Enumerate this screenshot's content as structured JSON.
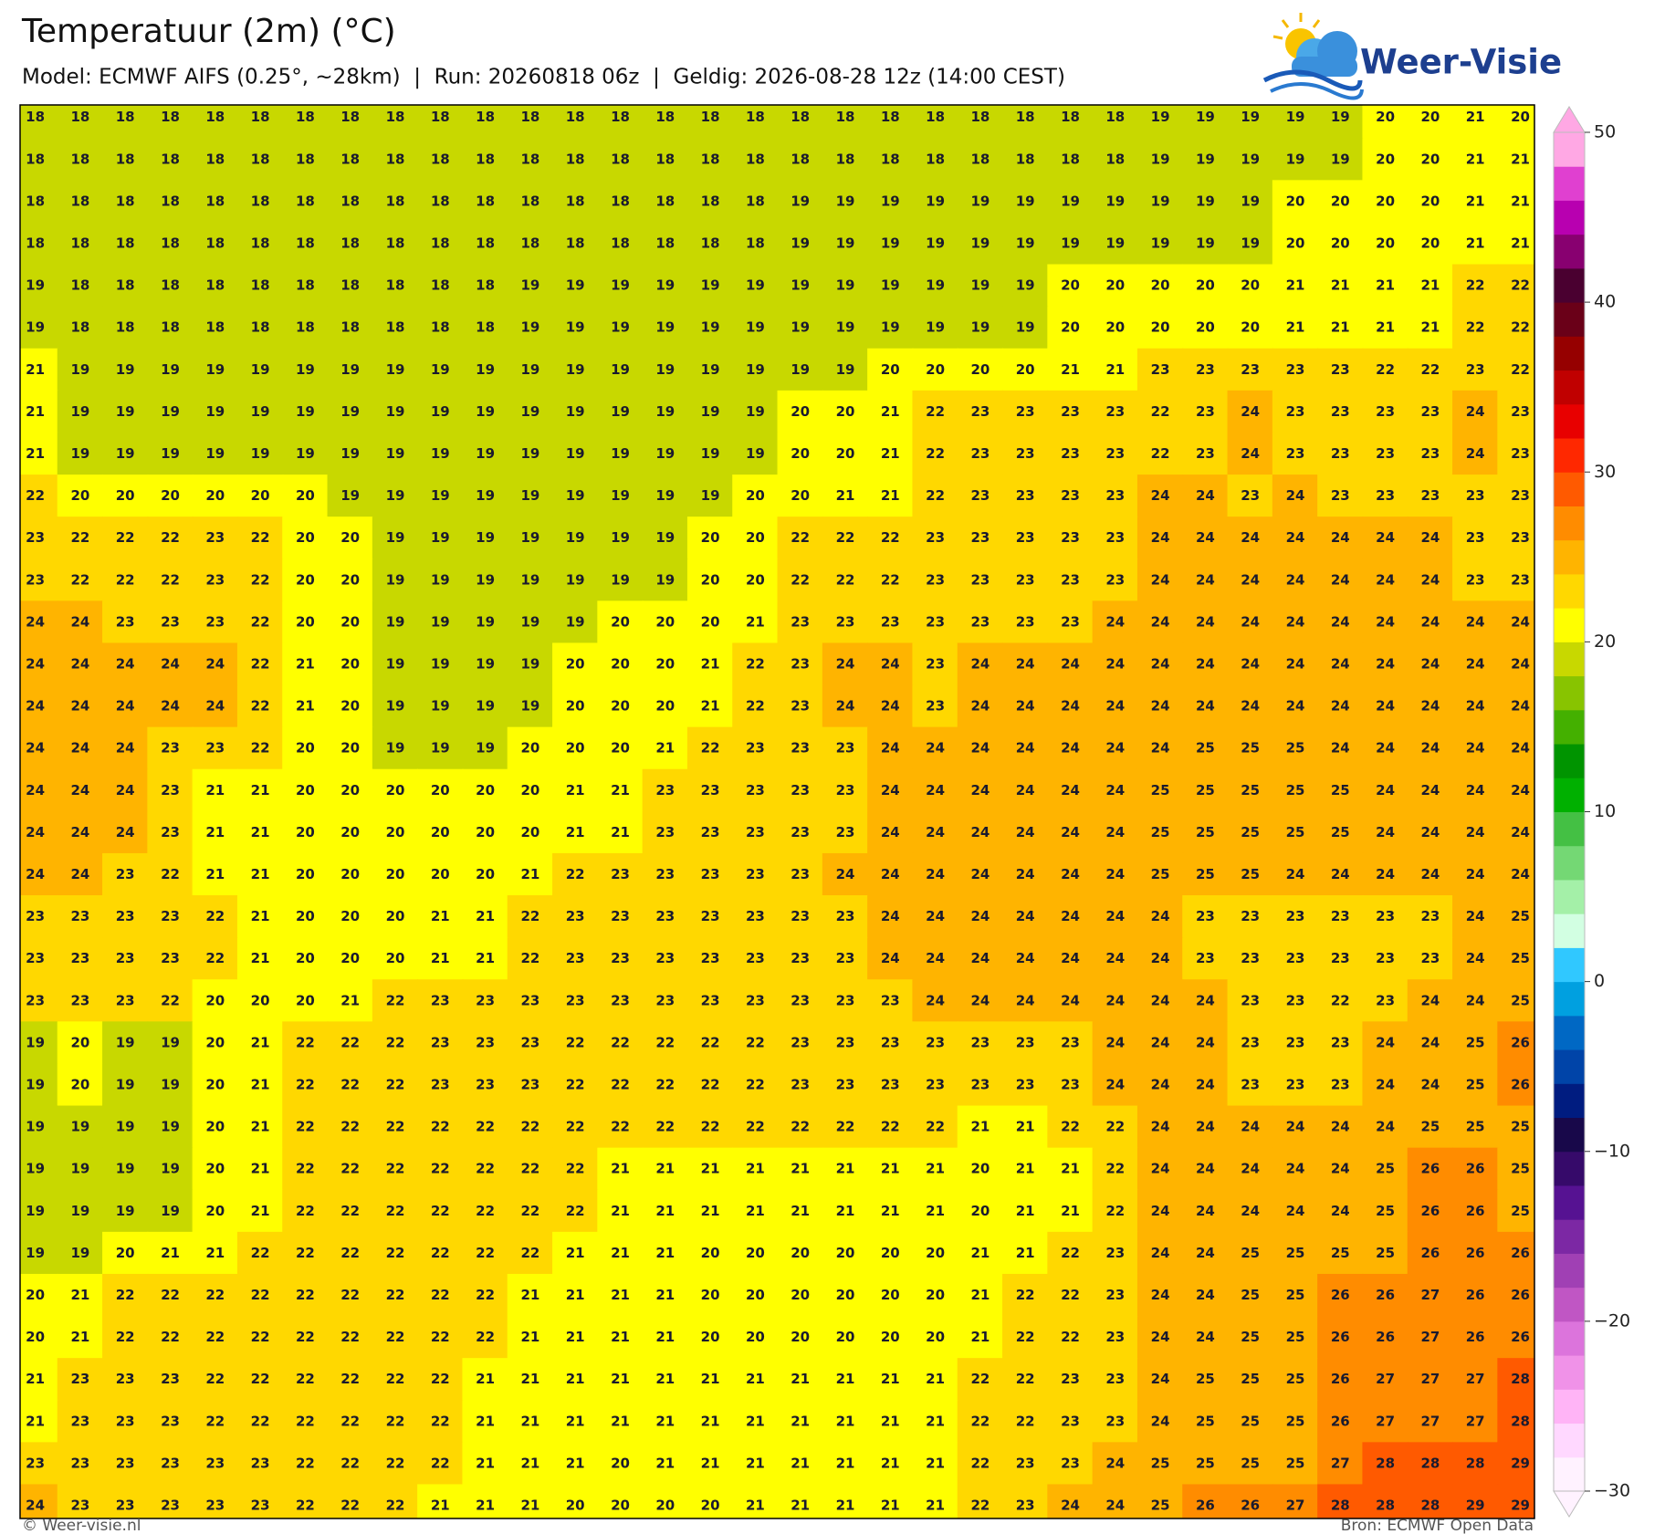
{
  "header": {
    "title": "Temperatuur (2m) (°C)",
    "subtitle": "Model: ECMWF AIFS (0.25°, ~28km)  |  Run: 20260818 06z  |  Geldig: 2026-08-28 12z (14:00 CEST)"
  },
  "logo": "Weer-Visie",
  "grid": [
    [
      18,
      18,
      18,
      18,
      18,
      18,
      18,
      18,
      18,
      18,
      18,
      18,
      18,
      18,
      18,
      18,
      18,
      18,
      18,
      18,
      18,
      18,
      18,
      18,
      18,
      19,
      19,
      19,
      19,
      19,
      20,
      20,
      21,
      20
    ],
    [
      18,
      18,
      18,
      18,
      18,
      18,
      18,
      18,
      18,
      18,
      18,
      18,
      18,
      18,
      18,
      18,
      18,
      18,
      18,
      18,
      18,
      18,
      18,
      18,
      18,
      19,
      19,
      19,
      19,
      19,
      20,
      20,
      21,
      21
    ],
    [
      18,
      18,
      18,
      18,
      18,
      18,
      18,
      18,
      18,
      18,
      18,
      18,
      18,
      18,
      18,
      18,
      18,
      19,
      19,
      19,
      19,
      19,
      19,
      19,
      19,
      19,
      19,
      19,
      20,
      20,
      20,
      20,
      21,
      21
    ],
    [
      18,
      18,
      18,
      18,
      18,
      18,
      18,
      18,
      18,
      18,
      18,
      18,
      18,
      18,
      18,
      18,
      18,
      19,
      19,
      19,
      19,
      19,
      19,
      19,
      19,
      19,
      19,
      19,
      20,
      20,
      20,
      20,
      21,
      21
    ],
    [
      19,
      18,
      18,
      18,
      18,
      18,
      18,
      18,
      18,
      18,
      18,
      19,
      19,
      19,
      19,
      19,
      19,
      19,
      19,
      19,
      19,
      19,
      19,
      20,
      20,
      20,
      20,
      20,
      21,
      21,
      21,
      21,
      22,
      22
    ],
    [
      19,
      18,
      18,
      18,
      18,
      18,
      18,
      18,
      18,
      18,
      18,
      19,
      19,
      19,
      19,
      19,
      19,
      19,
      19,
      19,
      19,
      19,
      19,
      20,
      20,
      20,
      20,
      20,
      21,
      21,
      21,
      21,
      22,
      22
    ],
    [
      21,
      19,
      19,
      19,
      19,
      19,
      19,
      19,
      19,
      19,
      19,
      19,
      19,
      19,
      19,
      19,
      19,
      19,
      19,
      20,
      20,
      20,
      20,
      21,
      21,
      23,
      23,
      23,
      23,
      23,
      22,
      22,
      23,
      22
    ],
    [
      21,
      19,
      19,
      19,
      19,
      19,
      19,
      19,
      19,
      19,
      19,
      19,
      19,
      19,
      19,
      19,
      19,
      20,
      20,
      21,
      22,
      23,
      23,
      23,
      23,
      22,
      23,
      24,
      23,
      23,
      23,
      23,
      24,
      23
    ],
    [
      21,
      19,
      19,
      19,
      19,
      19,
      19,
      19,
      19,
      19,
      19,
      19,
      19,
      19,
      19,
      19,
      19,
      20,
      20,
      21,
      22,
      23,
      23,
      23,
      23,
      22,
      23,
      24,
      23,
      23,
      23,
      23,
      24,
      23
    ],
    [
      22,
      20,
      20,
      20,
      20,
      20,
      20,
      19,
      19,
      19,
      19,
      19,
      19,
      19,
      19,
      19,
      20,
      20,
      21,
      21,
      22,
      23,
      23,
      23,
      23,
      24,
      24,
      23,
      24,
      23,
      23,
      23,
      23,
      23
    ],
    [
      23,
      22,
      22,
      22,
      23,
      22,
      20,
      20,
      19,
      19,
      19,
      19,
      19,
      19,
      19,
      20,
      20,
      22,
      22,
      22,
      23,
      23,
      23,
      23,
      23,
      24,
      24,
      24,
      24,
      24,
      24,
      24,
      23,
      23
    ],
    [
      23,
      22,
      22,
      22,
      23,
      22,
      20,
      20,
      19,
      19,
      19,
      19,
      19,
      19,
      19,
      20,
      20,
      22,
      22,
      22,
      23,
      23,
      23,
      23,
      23,
      24,
      24,
      24,
      24,
      24,
      24,
      24,
      23,
      23
    ],
    [
      24,
      24,
      23,
      23,
      23,
      22,
      20,
      20,
      19,
      19,
      19,
      19,
      19,
      20,
      20,
      20,
      21,
      23,
      23,
      23,
      23,
      23,
      23,
      23,
      24,
      24,
      24,
      24,
      24,
      24,
      24,
      24,
      24,
      24
    ],
    [
      24,
      24,
      24,
      24,
      24,
      22,
      21,
      20,
      19,
      19,
      19,
      19,
      20,
      20,
      20,
      21,
      22,
      23,
      24,
      24,
      23,
      24,
      24,
      24,
      24,
      24,
      24,
      24,
      24,
      24,
      24,
      24,
      24,
      24
    ],
    [
      24,
      24,
      24,
      24,
      24,
      22,
      21,
      20,
      19,
      19,
      19,
      19,
      20,
      20,
      20,
      21,
      22,
      23,
      24,
      24,
      23,
      24,
      24,
      24,
      24,
      24,
      24,
      24,
      24,
      24,
      24,
      24,
      24,
      24
    ],
    [
      24,
      24,
      24,
      23,
      23,
      22,
      20,
      20,
      19,
      19,
      19,
      20,
      20,
      20,
      21,
      22,
      23,
      23,
      23,
      24,
      24,
      24,
      24,
      24,
      24,
      24,
      25,
      25,
      25,
      24,
      24,
      24,
      24,
      24
    ],
    [
      24,
      24,
      24,
      23,
      21,
      21,
      20,
      20,
      20,
      20,
      20,
      20,
      21,
      21,
      23,
      23,
      23,
      23,
      23,
      24,
      24,
      24,
      24,
      24,
      24,
      25,
      25,
      25,
      25,
      25,
      24,
      24,
      24,
      24
    ],
    [
      24,
      24,
      24,
      23,
      21,
      21,
      20,
      20,
      20,
      20,
      20,
      20,
      21,
      21,
      23,
      23,
      23,
      23,
      23,
      24,
      24,
      24,
      24,
      24,
      24,
      25,
      25,
      25,
      25,
      25,
      24,
      24,
      24,
      24
    ],
    [
      24,
      24,
      23,
      22,
      21,
      21,
      20,
      20,
      20,
      20,
      20,
      21,
      22,
      23,
      23,
      23,
      23,
      23,
      24,
      24,
      24,
      24,
      24,
      24,
      24,
      25,
      25,
      25,
      24,
      24,
      24,
      24,
      24,
      24
    ],
    [
      23,
      23,
      23,
      23,
      22,
      21,
      20,
      20,
      20,
      21,
      21,
      22,
      23,
      23,
      23,
      23,
      23,
      23,
      23,
      24,
      24,
      24,
      24,
      24,
      24,
      24,
      23,
      23,
      23,
      23,
      23,
      23,
      24,
      25
    ],
    [
      23,
      23,
      23,
      23,
      22,
      21,
      20,
      20,
      20,
      21,
      21,
      22,
      23,
      23,
      23,
      23,
      23,
      23,
      23,
      24,
      24,
      24,
      24,
      24,
      24,
      24,
      23,
      23,
      23,
      23,
      23,
      23,
      24,
      25
    ],
    [
      23,
      23,
      23,
      22,
      20,
      20,
      20,
      21,
      22,
      23,
      23,
      23,
      23,
      23,
      23,
      23,
      23,
      23,
      23,
      23,
      24,
      24,
      24,
      24,
      24,
      24,
      24,
      23,
      23,
      22,
      23,
      24,
      24,
      25
    ],
    [
      19,
      20,
      19,
      19,
      20,
      21,
      22,
      22,
      22,
      23,
      23,
      23,
      22,
      22,
      22,
      22,
      22,
      23,
      23,
      23,
      23,
      23,
      23,
      23,
      24,
      24,
      24,
      23,
      23,
      23,
      24,
      24,
      25,
      26
    ],
    [
      19,
      20,
      19,
      19,
      20,
      21,
      22,
      22,
      22,
      23,
      23,
      23,
      22,
      22,
      22,
      22,
      22,
      23,
      23,
      23,
      23,
      23,
      23,
      23,
      24,
      24,
      24,
      23,
      23,
      23,
      24,
      24,
      25,
      26
    ],
    [
      19,
      19,
      19,
      19,
      20,
      21,
      22,
      22,
      22,
      22,
      22,
      22,
      22,
      22,
      22,
      22,
      22,
      22,
      22,
      22,
      22,
      21,
      21,
      22,
      22,
      24,
      24,
      24,
      24,
      24,
      24,
      25,
      25,
      25
    ],
    [
      19,
      19,
      19,
      19,
      20,
      21,
      22,
      22,
      22,
      22,
      22,
      22,
      22,
      21,
      21,
      21,
      21,
      21,
      21,
      21,
      21,
      20,
      21,
      21,
      22,
      24,
      24,
      24,
      24,
      24,
      25,
      26,
      26,
      25
    ],
    [
      19,
      19,
      19,
      19,
      20,
      21,
      22,
      22,
      22,
      22,
      22,
      22,
      22,
      21,
      21,
      21,
      21,
      21,
      21,
      21,
      21,
      20,
      21,
      21,
      22,
      24,
      24,
      24,
      24,
      24,
      25,
      26,
      26,
      25
    ],
    [
      19,
      19,
      20,
      21,
      21,
      22,
      22,
      22,
      22,
      22,
      22,
      22,
      21,
      21,
      21,
      20,
      20,
      20,
      20,
      20,
      20,
      21,
      21,
      22,
      23,
      24,
      24,
      25,
      25,
      25,
      25,
      26,
      26,
      26
    ],
    [
      20,
      21,
      22,
      22,
      22,
      22,
      22,
      22,
      22,
      22,
      22,
      21,
      21,
      21,
      21,
      20,
      20,
      20,
      20,
      20,
      20,
      21,
      22,
      22,
      23,
      24,
      24,
      25,
      25,
      26,
      26,
      27,
      26,
      26
    ],
    [
      20,
      21,
      22,
      22,
      22,
      22,
      22,
      22,
      22,
      22,
      22,
      21,
      21,
      21,
      21,
      20,
      20,
      20,
      20,
      20,
      20,
      21,
      22,
      22,
      23,
      24,
      24,
      25,
      25,
      26,
      26,
      27,
      26,
      26
    ],
    [
      21,
      23,
      23,
      23,
      22,
      22,
      22,
      22,
      22,
      22,
      21,
      21,
      21,
      21,
      21,
      21,
      21,
      21,
      21,
      21,
      21,
      22,
      22,
      23,
      23,
      24,
      25,
      25,
      25,
      26,
      27,
      27,
      27,
      28
    ],
    [
      21,
      23,
      23,
      23,
      22,
      22,
      22,
      22,
      22,
      22,
      21,
      21,
      21,
      21,
      21,
      21,
      21,
      21,
      21,
      21,
      21,
      22,
      22,
      23,
      23,
      24,
      25,
      25,
      25,
      26,
      27,
      27,
      27,
      28
    ],
    [
      23,
      23,
      23,
      23,
      23,
      23,
      22,
      22,
      22,
      22,
      21,
      21,
      21,
      20,
      21,
      21,
      21,
      21,
      21,
      21,
      21,
      22,
      23,
      23,
      24,
      25,
      25,
      25,
      25,
      27,
      28,
      28,
      28,
      29
    ],
    [
      24,
      23,
      23,
      23,
      23,
      23,
      22,
      22,
      22,
      21,
      21,
      21,
      20,
      20,
      20,
      20,
      21,
      21,
      21,
      21,
      21,
      22,
      23,
      24,
      24,
      25,
      26,
      26,
      27,
      28,
      28,
      28,
      29,
      29
    ]
  ],
  "colorbar": {
    "lim": [
      -30,
      50
    ],
    "ticks": [
      {
        "value": -30,
        "label": "−30"
      },
      {
        "value": -20,
        "label": "−20"
      },
      {
        "value": -10,
        "label": "−10"
      },
      0,
      10,
      20,
      30,
      40,
      50
    ],
    "colors": [
      "#fff2ff",
      "#ffd8ff",
      "#ffb4f6",
      "#f092e8",
      "#dc74dc",
      "#c056c4",
      "#a040b4",
      "#7c28a4",
      "#561292",
      "#360a6a",
      "#18084a",
      "#001c80",
      "#0044a8",
      "#0068c4",
      "#00a0e0",
      "#30c8ff",
      "#d2ffe2",
      "#a4f0a8",
      "#74d874",
      "#44c044",
      "#00b000",
      "#009400",
      "#44b000",
      "#88c400",
      "#c8d800",
      "#ffff00",
      "#ffd800",
      "#ffb400",
      "#ff8c00",
      "#ff5a00",
      "#ff2800",
      "#e80000",
      "#c00000",
      "#960000",
      "#6a0018",
      "#4a0030",
      "#880070",
      "#b800b0",
      "#e040d0",
      "#ffa8e4"
    ]
  },
  "footer": {
    "credit": "© Weer-visie.nl",
    "source": "Bron: ECMWF Open Data"
  }
}
